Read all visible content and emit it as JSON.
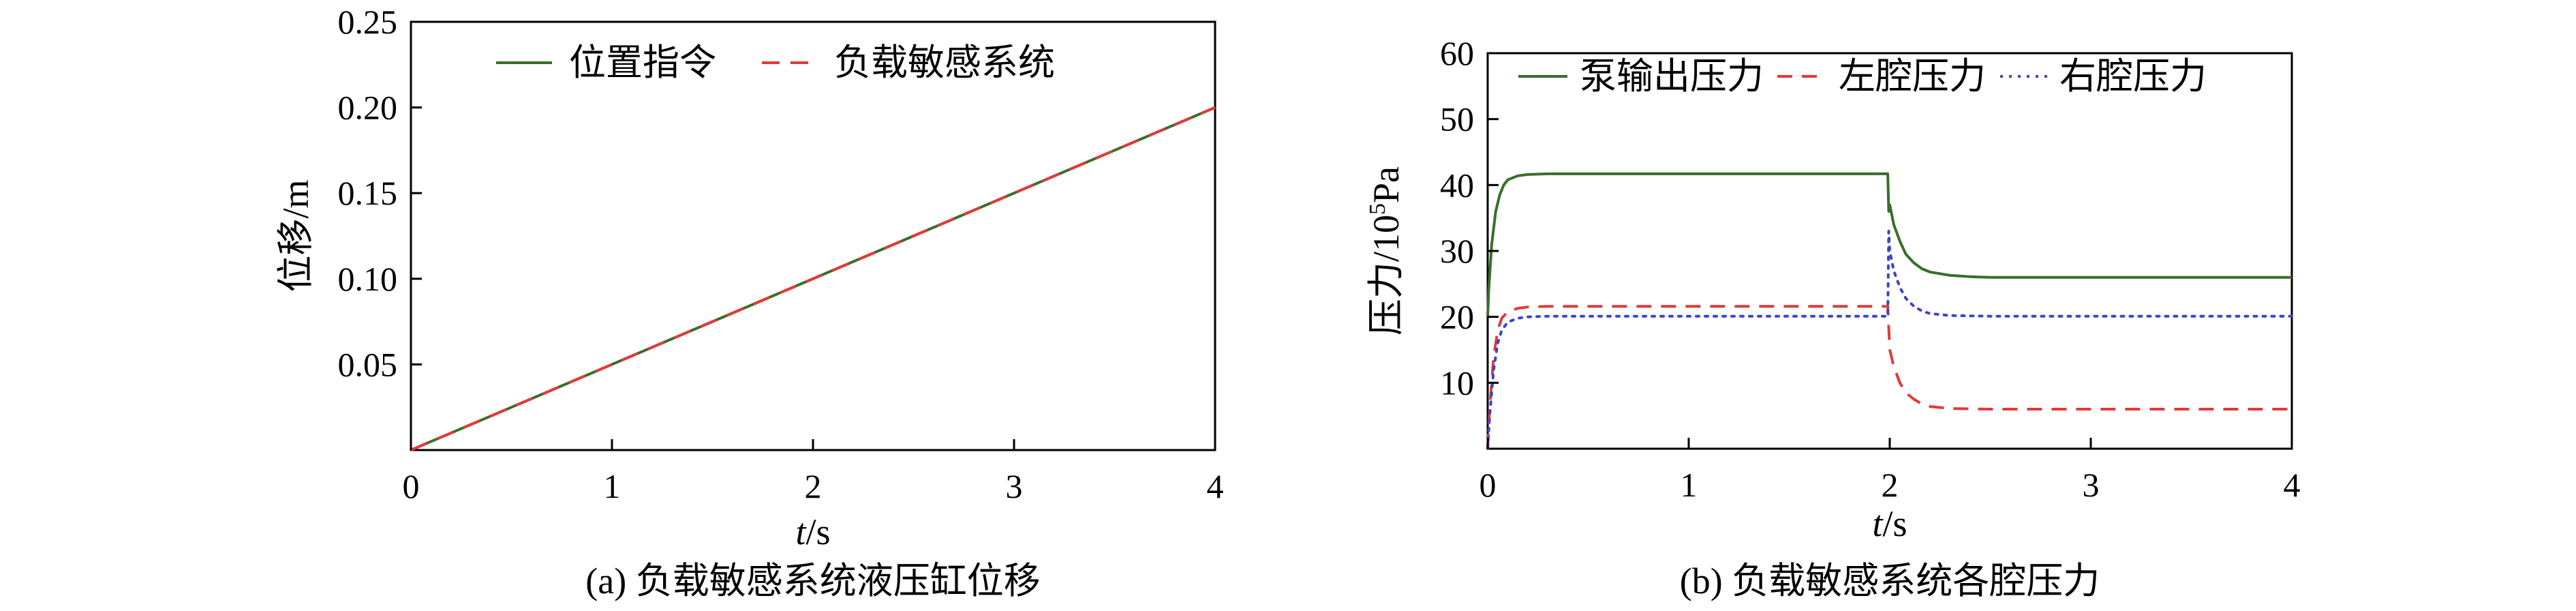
{
  "chart_data": [
    {
      "type": "line",
      "caption": "(a) 负载敏感系统液压缸位移",
      "xlabel_italic": "t",
      "xlabel_unit": "/s",
      "ylabel": "位移/m",
      "xlim": [
        0,
        4
      ],
      "ylim": [
        0,
        0.25
      ],
      "xticks": [
        0,
        1,
        2,
        3,
        4
      ],
      "yticks": [
        0.05,
        0.1,
        0.15,
        0.2,
        0.25
      ],
      "ytick_labels": [
        "0.05",
        "0.10",
        "0.15",
        "0.20",
        "0.25"
      ],
      "grid": false,
      "legend_position": "top",
      "series": [
        {
          "name": "位置指令",
          "color": "#3a6e2a",
          "dash": "solid",
          "x": [
            0,
            4
          ],
          "y": [
            0,
            0.2
          ]
        },
        {
          "name": "负载敏感系统",
          "color": "#e03a3a",
          "dash": "dashed",
          "x": [
            0,
            4
          ],
          "y": [
            0,
            0.2
          ]
        }
      ]
    },
    {
      "type": "line",
      "caption": "(b) 负载敏感系统各腔压力",
      "xlabel_italic": "t",
      "xlabel_unit": "/s",
      "ylabel_main": "压力/10",
      "ylabel_sup": "5",
      "ylabel_tail": "Pa",
      "xlim": [
        0,
        4
      ],
      "ylim": [
        0,
        60
      ],
      "xticks": [
        0,
        1,
        2,
        3,
        4
      ],
      "yticks": [
        10,
        20,
        30,
        40,
        50,
        60
      ],
      "grid": false,
      "legend_position": "top",
      "series": [
        {
          "name": "泵输出压力",
          "color": "#3a6e2a",
          "dash": "solid",
          "x": [
            0,
            0.005,
            0.02,
            0.04,
            0.06,
            0.08,
            0.1,
            0.15,
            0.2,
            0.3,
            0.5,
            1.0,
            1.5,
            1.99,
            1.995,
            2.0,
            2.02,
            2.05,
            2.08,
            2.12,
            2.16,
            2.2,
            2.3,
            2.4,
            2.5,
            3.0,
            3.5,
            4.0
          ],
          "y": [
            20,
            24,
            31,
            36,
            38.5,
            40,
            40.8,
            41.4,
            41.6,
            41.7,
            41.7,
            41.7,
            41.7,
            41.7,
            36,
            37,
            34,
            31.5,
            29.5,
            28.2,
            27.3,
            26.8,
            26.3,
            26.1,
            26.0,
            26.0,
            26.0,
            26.0
          ]
        },
        {
          "name": "左腔压力",
          "color": "#e03a3a",
          "dash": "dashed",
          "x": [
            0,
            0.01,
            0.03,
            0.05,
            0.07,
            0.1,
            0.15,
            0.2,
            0.3,
            0.5,
            1.0,
            1.5,
            1.99,
            2.0,
            2.02,
            2.05,
            2.08,
            2.12,
            2.16,
            2.2,
            2.3,
            2.5,
            3.0,
            3.5,
            4.0
          ],
          "y": [
            0,
            6,
            14,
            18,
            19.8,
            20.8,
            21.3,
            21.5,
            21.6,
            21.6,
            21.6,
            21.6,
            21.6,
            15,
            12.5,
            10,
            8.5,
            7.5,
            6.8,
            6.4,
            6.1,
            6.0,
            6.0,
            6.0,
            6.0
          ]
        },
        {
          "name": "右腔压力",
          "color": "#3a45c8",
          "dash": "dotted",
          "x": [
            0,
            0.01,
            0.03,
            0.05,
            0.07,
            0.1,
            0.15,
            0.2,
            0.3,
            0.5,
            1.0,
            1.5,
            1.99,
            1.995,
            2.0,
            2.02,
            2.05,
            2.08,
            2.12,
            2.16,
            2.2,
            2.3,
            2.5,
            3.0,
            3.5,
            4.0
          ],
          "y": [
            0,
            5,
            12,
            16,
            18,
            19.2,
            19.8,
            20.0,
            20.1,
            20.1,
            20.1,
            20.1,
            20.1,
            33,
            30,
            27,
            24.5,
            22.8,
            21.6,
            20.9,
            20.5,
            20.2,
            20.1,
            20.1,
            20.1,
            20.1
          ]
        }
      ]
    }
  ]
}
